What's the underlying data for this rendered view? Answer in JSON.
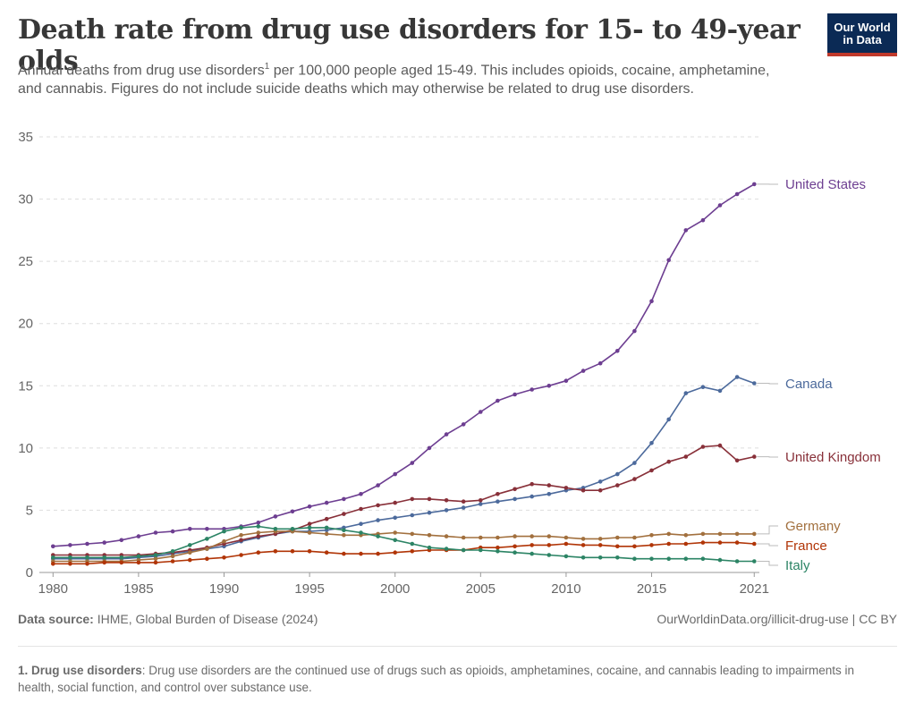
{
  "header": {
    "title": "Death rate from drug use disorders for 15- to 49-year olds",
    "subtitle_part1": "Annual deaths from drug use disorders",
    "subtitle_sup": "1",
    "subtitle_part2": " per 100,000 people aged 15-49. This includes opioids, cocaine, amphetamine, and cannabis. Figures do not include suicide deaths which may otherwise be related to drug use disorders.",
    "logo_line1": "Our World",
    "logo_line2": "in Data"
  },
  "footer": {
    "source_label": "Data source:",
    "source_text": " IHME, Global Burden of Disease (2024)",
    "url_text": "OurWorldinData.org/illicit-drug-use | CC BY",
    "note_label": "1. Drug use disorders",
    "note_text": ": Drug use disorders are the continued use of drugs such as opioids, amphetamines, cocaine, and cannabis leading to impairments in health, social function, and control over substance use."
  },
  "chart_data": {
    "type": "line",
    "x": [
      1980,
      1981,
      1982,
      1983,
      1984,
      1985,
      1986,
      1987,
      1988,
      1989,
      1990,
      1991,
      1992,
      1993,
      1994,
      1995,
      1996,
      1997,
      1998,
      1999,
      2000,
      2001,
      2002,
      2003,
      2004,
      2005,
      2006,
      2007,
      2008,
      2009,
      2010,
      2011,
      2012,
      2013,
      2014,
      2015,
      2016,
      2017,
      2018,
      2019,
      2020,
      2021
    ],
    "xlim": [
      1979.2,
      2021.3
    ],
    "ylim": [
      0,
      35
    ],
    "yticks": [
      0,
      5,
      10,
      15,
      20,
      25,
      30,
      35
    ],
    "xticks": [
      1980,
      1985,
      1990,
      1995,
      2000,
      2005,
      2010,
      2015,
      2021
    ],
    "grid": "horizontal dashed",
    "series": [
      {
        "name": "United States",
        "color": "#6d3e91",
        "values": [
          2.1,
          2.2,
          2.3,
          2.4,
          2.6,
          2.9,
          3.2,
          3.3,
          3.5,
          3.5,
          3.5,
          3.7,
          4.0,
          4.5,
          4.9,
          5.3,
          5.6,
          5.9,
          6.3,
          7.0,
          7.9,
          8.8,
          10.0,
          11.1,
          11.9,
          12.9,
          13.8,
          14.3,
          14.7,
          15.0,
          15.4,
          16.2,
          16.8,
          17.8,
          19.4,
          21.8,
          25.1,
          27.5,
          28.3,
          29.5,
          30.4,
          31.2
        ]
      },
      {
        "name": "Canada",
        "color": "#4c6a9c",
        "values": [
          1.1,
          1.1,
          1.1,
          1.1,
          1.1,
          1.2,
          1.3,
          1.5,
          1.7,
          1.9,
          2.1,
          2.5,
          2.8,
          3.1,
          3.3,
          3.3,
          3.4,
          3.6,
          3.9,
          4.2,
          4.4,
          4.6,
          4.8,
          5.0,
          5.2,
          5.5,
          5.7,
          5.9,
          6.1,
          6.3,
          6.6,
          6.8,
          7.3,
          7.9,
          8.8,
          10.4,
          12.3,
          14.4,
          14.9,
          14.6,
          15.7,
          15.2
        ]
      },
      {
        "name": "United Kingdom",
        "color": "#883039",
        "values": [
          1.4,
          1.4,
          1.4,
          1.4,
          1.4,
          1.4,
          1.5,
          1.6,
          1.8,
          2.0,
          2.3,
          2.6,
          2.9,
          3.1,
          3.4,
          3.9,
          4.3,
          4.7,
          5.1,
          5.4,
          5.6,
          5.9,
          5.9,
          5.8,
          5.7,
          5.8,
          6.3,
          6.7,
          7.1,
          7.0,
          6.8,
          6.6,
          6.6,
          7.0,
          7.5,
          8.2,
          8.9,
          9.3,
          10.1,
          10.2,
          9.0,
          9.3
        ]
      },
      {
        "name": "Germany",
        "color": "#a2703e",
        "values": [
          0.9,
          0.9,
          0.9,
          0.9,
          0.9,
          1.0,
          1.1,
          1.3,
          1.6,
          1.9,
          2.5,
          3.0,
          3.2,
          3.3,
          3.3,
          3.2,
          3.1,
          3.0,
          3.0,
          3.1,
          3.2,
          3.1,
          3.0,
          2.9,
          2.8,
          2.8,
          2.8,
          2.9,
          2.9,
          2.9,
          2.8,
          2.7,
          2.7,
          2.8,
          2.8,
          3.0,
          3.1,
          3.0,
          3.1,
          3.1,
          3.1,
          3.1
        ]
      },
      {
        "name": "France",
        "color": "#b13507",
        "values": [
          0.7,
          0.7,
          0.7,
          0.8,
          0.8,
          0.8,
          0.8,
          0.9,
          1.0,
          1.1,
          1.2,
          1.4,
          1.6,
          1.7,
          1.7,
          1.7,
          1.6,
          1.5,
          1.5,
          1.5,
          1.6,
          1.7,
          1.8,
          1.8,
          1.8,
          2.0,
          2.0,
          2.1,
          2.2,
          2.2,
          2.3,
          2.2,
          2.2,
          2.1,
          2.1,
          2.2,
          2.3,
          2.3,
          2.4,
          2.4,
          2.4,
          2.3
        ]
      },
      {
        "name": "Italy",
        "color": "#2c8465",
        "values": [
          1.2,
          1.2,
          1.2,
          1.2,
          1.2,
          1.3,
          1.4,
          1.7,
          2.2,
          2.7,
          3.3,
          3.6,
          3.7,
          3.5,
          3.5,
          3.6,
          3.6,
          3.4,
          3.2,
          2.9,
          2.6,
          2.3,
          2.0,
          1.9,
          1.8,
          1.8,
          1.7,
          1.6,
          1.5,
          1.4,
          1.3,
          1.2,
          1.2,
          1.2,
          1.1,
          1.1,
          1.1,
          1.1,
          1.1,
          1.0,
          0.9,
          0.9
        ]
      }
    ]
  }
}
